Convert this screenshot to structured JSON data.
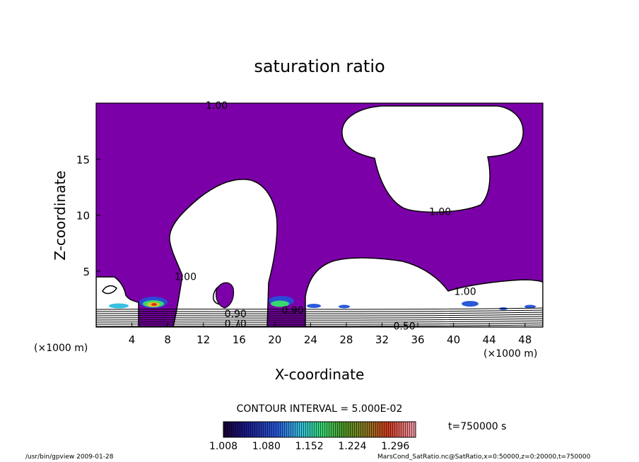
{
  "chart_data": {
    "type": "heatmap",
    "title": "saturation ratio",
    "xlabel": "X-coordinate",
    "ylabel": "Z-coordinate",
    "x_unit_left": "(×1000 m)",
    "x_unit_right": "(×1000 m)",
    "xlim": [
      0,
      50
    ],
    "ylim": [
      0,
      20
    ],
    "xticks": [
      "4",
      "8",
      "12",
      "16",
      "20",
      "24",
      "28",
      "32",
      "36",
      "40",
      "44",
      "48"
    ],
    "yticks": [
      "5",
      "10",
      "15"
    ],
    "contour_interval_text": "CONTOUR INTERVAL = 5.000E-02",
    "contour_labels": [
      {
        "text": "1.00",
        "x": 13.5,
        "z": 19.8
      },
      {
        "text": "1.00",
        "x": 38.5,
        "z": 10.3
      },
      {
        "text": "1.00",
        "x": 10.0,
        "z": 4.5
      },
      {
        "text": "1.00",
        "x": 41.3,
        "z": 3.2
      },
      {
        "text": "0.90",
        "x": 15.6,
        "z": 1.2
      },
      {
        "text": "0.70",
        "x": 15.6,
        "z": 0.3
      },
      {
        "text": "0.50",
        "x": 34.5,
        "z": 0.1
      },
      {
        "text": "0.90",
        "x": 22.0,
        "z": 1.5
      }
    ],
    "colorbar": {
      "ticks": [
        "1.008",
        "1.080",
        "1.152",
        "1.224",
        "1.296"
      ],
      "min": 1.008,
      "max": 1.33
    },
    "time_label": "t=750000 s",
    "colors": {
      "supersaturated_fill": "#7b00a8",
      "background": "#ffffff",
      "contour": "#000000"
    }
  },
  "footer": {
    "left": "/usr/bin/gpview  2009-01-28",
    "right": "MarsCond_SatRatio.nc@SatRatio,x=0:50000,z=0:20000,t=750000"
  }
}
